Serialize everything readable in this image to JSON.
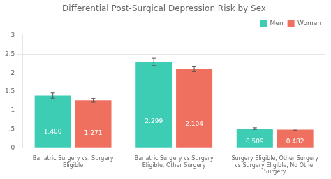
{
  "chart_data": {
    "type": "bar",
    "title": "Differential Post-Surgical Depression Risk by Sex",
    "categories": [
      "Bariatric Surgery vs. Surgery\nEligible",
      "Bariatric Surgery vs Surgery\nEligible, Other Surgery",
      "Surgery Eligible, Other Surgery\nvs Surgery Eligible, No Other\nSurgery"
    ],
    "series": [
      {
        "name": "Men",
        "color": "#3DCCB4",
        "values": [
          1.4,
          2.299,
          0.509
        ],
        "errors": [
          0.07,
          0.1,
          0.022
        ],
        "value_labels": [
          "1.400",
          "2.299",
          "0.509"
        ]
      },
      {
        "name": "Women",
        "color": "#F07060",
        "values": [
          1.271,
          2.104,
          0.482
        ],
        "errors": [
          0.05,
          0.065,
          0.016
        ],
        "value_labels": [
          "1.271",
          "2.104",
          "0.482"
        ]
      }
    ],
    "ylim": [
      0,
      3.05
    ],
    "yticks": [
      0,
      {
        "value": 0.5,
        "label": ".5"
      },
      1,
      1.5,
      2,
      2.5,
      3
    ],
    "grid": true,
    "legend": "upper right",
    "data_labels": true
  }
}
